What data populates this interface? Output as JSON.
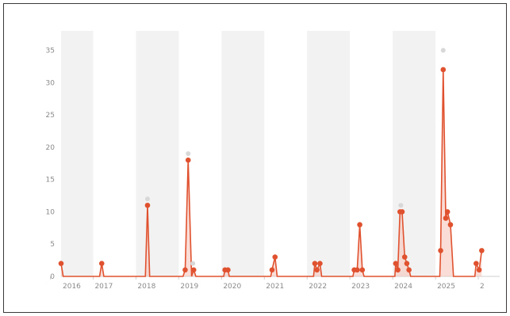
{
  "chart_data": {
    "type": "line",
    "title": "",
    "xlabel": "",
    "ylabel": "",
    "ylim": [
      0,
      38
    ],
    "yticks": [
      0,
      5,
      10,
      15,
      20,
      25,
      30,
      35
    ],
    "xlim": [
      2015.75,
      2026.0
    ],
    "year_labels": [
      "2016",
      "2017",
      "2018",
      "2019",
      "2020",
      "2021",
      "2022",
      "2023",
      "2024",
      "2025",
      "2"
    ],
    "shaded_year_bands": "alternating",
    "grid": false,
    "legend": "none",
    "colors": {
      "line": "#e0522f",
      "marker": "#e0522f",
      "fill": "#f6c7bb",
      "ghost": "#d8d8d8",
      "band": "#f2f2f2",
      "axis": "#cfcfcf",
      "text": "#8a8a8a"
    },
    "series": [
      {
        "values": [
          [
            2015.75,
            2
          ],
          [
            2015.8,
            0
          ],
          [
            2016.65,
            0
          ],
          [
            2016.7,
            2
          ],
          [
            2016.75,
            0
          ],
          [
            2017.72,
            0
          ],
          [
            2017.77,
            11
          ],
          [
            2017.82,
            0
          ],
          [
            2018.6,
            0
          ],
          [
            2018.65,
            1
          ],
          [
            2018.72,
            18
          ],
          [
            2018.8,
            0
          ],
          [
            2018.85,
            1
          ],
          [
            2018.9,
            0
          ],
          [
            2019.55,
            0
          ],
          [
            2019.58,
            1
          ],
          [
            2019.65,
            1
          ],
          [
            2019.68,
            0
          ],
          [
            2020.65,
            0
          ],
          [
            2020.68,
            1
          ],
          [
            2020.75,
            3
          ],
          [
            2020.8,
            0
          ],
          [
            2021.65,
            0
          ],
          [
            2021.68,
            2
          ],
          [
            2021.73,
            1
          ],
          [
            2021.8,
            2
          ],
          [
            2021.84,
            0
          ],
          [
            2022.57,
            0
          ],
          [
            2022.6,
            1
          ],
          [
            2022.67,
            1
          ],
          [
            2022.73,
            8
          ],
          [
            2022.79,
            1
          ],
          [
            2022.83,
            0
          ],
          [
            2023.55,
            0
          ],
          [
            2023.57,
            2
          ],
          [
            2023.62,
            1
          ],
          [
            2023.67,
            10
          ],
          [
            2023.72,
            10
          ],
          [
            2023.78,
            3
          ],
          [
            2023.83,
            2
          ],
          [
            2023.88,
            1
          ],
          [
            2023.92,
            0
          ],
          [
            2024.6,
            0
          ],
          [
            2024.62,
            4
          ],
          [
            2024.68,
            32
          ],
          [
            2024.74,
            9
          ],
          [
            2024.78,
            10
          ],
          [
            2024.85,
            8
          ],
          [
            2024.92,
            0
          ],
          [
            2025.42,
            0
          ],
          [
            2025.45,
            2
          ],
          [
            2025.52,
            1
          ],
          [
            2025.58,
            4
          ]
        ]
      }
    ],
    "ghost_points": [
      [
        2017.77,
        12
      ],
      [
        2018.72,
        19
      ],
      [
        2018.83,
        2
      ],
      [
        2023.69,
        11
      ],
      [
        2024.68,
        35
      ]
    ]
  }
}
